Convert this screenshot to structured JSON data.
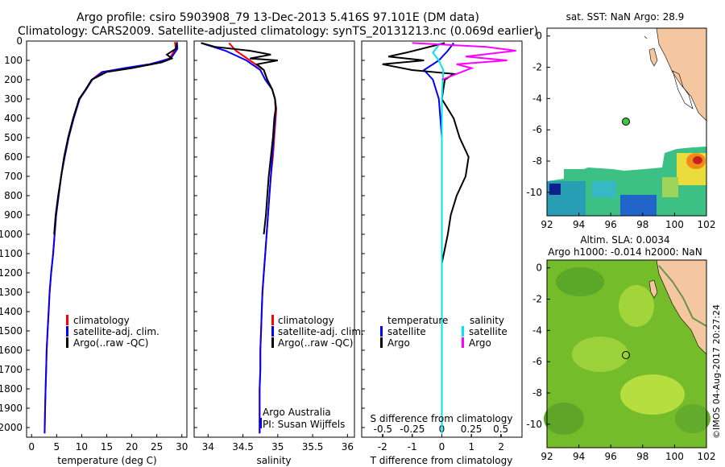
{
  "header": {
    "title_line1": "Argo profile: csiro 5903908_79 13-Dec-2013 5.416S 97.101E (DM data)",
    "title_line2": "Climatology: CARS2009. Satellite-adjusted climatology: synTS_20131213.nc (0.069d earlier)"
  },
  "colors": {
    "climatology": "#ff0000",
    "satellite": "#0000ff",
    "argo": "#000000",
    "salinity_satellite": "#00e5ee",
    "salinity_argo": "#ff00ff"
  },
  "credits": {
    "institution": "Argo Australia",
    "pi": "PI: Susan Wijffels",
    "stamp": "©IMOS 04-Aug-2017 20:27:24"
  },
  "legend_profiles": {
    "climatology": "climatology",
    "satellite": "satellite-adj. clim.",
    "argo": "Argo(..raw -QC)"
  },
  "legend_diff": {
    "temperature_header": "temperature",
    "salinity_header": "salinity",
    "satellite": "satellite",
    "argo": "Argo"
  },
  "chart_data": [
    {
      "type": "line",
      "xlabel": "temperature (deg C)",
      "ylabel": "",
      "xlim": [
        -1,
        31
      ],
      "ylim": [
        2050,
        0
      ],
      "xticks": [
        0,
        5,
        10,
        15,
        20,
        25,
        30
      ],
      "yticks": [
        0,
        100,
        200,
        300,
        400,
        500,
        600,
        700,
        800,
        900,
        1000,
        1100,
        1200,
        1300,
        1400,
        1500,
        1600,
        1700,
        1800,
        1900,
        2000
      ],
      "series": [
        {
          "name": "climatology",
          "x": [
            28.6,
            28.8,
            27.5,
            24.0,
            19.0,
            14.0,
            12.0,
            10.8,
            9.5,
            8.3,
            7.3,
            6.5,
            5.9,
            5.4,
            4.9,
            4.6,
            4.3,
            3.9,
            3.6,
            3.4,
            3.2,
            3.0,
            2.9,
            2.8,
            2.7,
            2.6
          ],
          "y": [
            5,
            40,
            90,
            120,
            140,
            160,
            200,
            250,
            300,
            400,
            500,
            600,
            700,
            800,
            900,
            1000,
            1100,
            1200,
            1300,
            1400,
            1500,
            1600,
            1700,
            1800,
            1900,
            2030
          ]
        },
        {
          "name": "satellite-adj. clim.",
          "x": [
            29.0,
            29.1,
            27.8,
            23.5,
            18.5,
            14.2,
            12.1,
            10.9,
            9.6,
            8.4,
            7.4,
            6.6,
            5.9,
            5.4,
            4.9,
            4.6,
            4.3,
            3.9,
            3.6,
            3.4,
            3.2,
            3.0,
            2.9,
            2.8,
            2.7,
            2.6
          ],
          "y": [
            5,
            40,
            90,
            120,
            140,
            160,
            200,
            250,
            300,
            400,
            500,
            600,
            700,
            800,
            900,
            1000,
            1100,
            1200,
            1300,
            1400,
            1500,
            1600,
            1700,
            1800,
            1900,
            2030
          ]
        },
        {
          "name": "Argo(..raw -QC)",
          "x": [
            29.0,
            28.8,
            27.0,
            28.0,
            26.0,
            20.0,
            15.0,
            12.0,
            10.8,
            9.5,
            8.3,
            7.3,
            6.5,
            5.9,
            5.3,
            4.8,
            4.5
          ],
          "y": [
            10,
            40,
            70,
            90,
            110,
            140,
            160,
            200,
            250,
            300,
            400,
            500,
            600,
            700,
            800,
            900,
            1000
          ]
        }
      ]
    },
    {
      "type": "line",
      "xlabel": "salinity",
      "ylabel": "",
      "xlim": [
        33.8,
        36.1
      ],
      "ylim": [
        2050,
        0
      ],
      "xticks": [
        34,
        34.5,
        35,
        35.5,
        36
      ],
      "series": [
        {
          "name": "climatology",
          "x": [
            34.3,
            34.4,
            34.6,
            34.8,
            34.85,
            34.92,
            34.96,
            34.98,
            34.97,
            34.95,
            34.93,
            34.9,
            34.88,
            34.86,
            34.84,
            34.82,
            34.8,
            34.78,
            34.77,
            34.76,
            34.75,
            34.75,
            34.74,
            34.74,
            34.74
          ],
          "y": [
            10,
            50,
            100,
            150,
            200,
            250,
            300,
            350,
            400,
            500,
            600,
            700,
            800,
            900,
            1000,
            1100,
            1200,
            1300,
            1400,
            1500,
            1600,
            1700,
            1800,
            1900,
            2030
          ]
        },
        {
          "name": "satellite-adj. clim.",
          "x": [
            33.9,
            34.25,
            34.55,
            34.75,
            34.82,
            34.92,
            34.96,
            34.97,
            34.96,
            34.94,
            34.92,
            34.9,
            34.88,
            34.86,
            34.84,
            34.82,
            34.8,
            34.78,
            34.77,
            34.76,
            34.75,
            34.75,
            34.74,
            34.74,
            34.74
          ],
          "y": [
            10,
            50,
            100,
            150,
            200,
            250,
            300,
            350,
            400,
            500,
            600,
            700,
            800,
            900,
            1000,
            1100,
            1200,
            1300,
            1400,
            1500,
            1600,
            1700,
            1800,
            1900,
            2030
          ]
        },
        {
          "name": "Argo(..raw -QC)",
          "x": [
            33.9,
            34.1,
            34.6,
            34.9,
            34.6,
            35.0,
            34.7,
            34.8,
            34.85,
            34.92,
            34.96,
            34.97,
            34.95,
            34.93,
            34.9,
            34.87,
            34.85,
            34.83,
            34.8
          ],
          "y": [
            10,
            30,
            50,
            70,
            90,
            100,
            120,
            150,
            200,
            250,
            300,
            350,
            400,
            500,
            600,
            700,
            800,
            900,
            1000
          ]
        }
      ]
    },
    {
      "type": "line",
      "xlabel": "T difference from climatology",
      "x2label": "S difference from climatology",
      "xlim": [
        -2.7,
        2.7
      ],
      "ylim": [
        2050,
        0
      ],
      "xticks": [
        -2,
        -1,
        0,
        1,
        2
      ],
      "x2ticks": [
        -0.5,
        -0.25,
        0,
        0.25,
        0.5
      ],
      "series": [
        {
          "name": "temperature satellite",
          "x": [
            0.4,
            0.2,
            -0.1,
            -0.6,
            -0.3,
            -0.2,
            -0.1,
            0.0,
            0.0,
            0.0
          ],
          "y": [
            10,
            50,
            100,
            150,
            200,
            250,
            300,
            500,
            1000,
            2030
          ]
        },
        {
          "name": "temperature Argo",
          "x": [
            0.1,
            -1.2,
            -1.8,
            -0.6,
            -2.0,
            -1.0,
            0.4,
            0.1,
            0.0,
            0.4,
            0.6,
            0.9,
            0.8,
            0.5,
            0.3,
            0.2,
            0.0
          ],
          "y": [
            10,
            60,
            80,
            100,
            120,
            150,
            170,
            200,
            300,
            400,
            500,
            600,
            700,
            800,
            900,
            1000,
            1150
          ]
        },
        {
          "name": "salinity satellite",
          "x": [
            -0.05,
            -0.3,
            -0.1,
            0.05,
            0.0,
            0.0,
            0.0
          ],
          "y": [
            10,
            60,
            100,
            150,
            300,
            1000,
            2030
          ]
        },
        {
          "name": "salinity Argo",
          "x": [
            -1.0,
            1.5,
            2.5,
            0.8,
            2.2,
            0.5,
            1.0,
            0.0
          ],
          "y": [
            10,
            30,
            50,
            80,
            100,
            120,
            140,
            200
          ]
        }
      ]
    },
    {
      "type": "heatmap",
      "title": "sat. SST: NaN Argo: 28.9",
      "xlim": [
        92,
        102
      ],
      "ylim": [
        -11.5,
        0.5
      ],
      "xticks": [
        92,
        94,
        96,
        98,
        100,
        102
      ],
      "yticks": [
        0,
        -2,
        -4,
        -6,
        -8,
        -10
      ],
      "marker": {
        "lon": 97.1,
        "lat": -5.42
      }
    },
    {
      "type": "heatmap",
      "title": "Altim. SLA: 0.0034",
      "subtitle": "Argo h1000: -0.014 h2000: NaN",
      "xlim": [
        92,
        102
      ],
      "ylim": [
        -11.5,
        0.5
      ],
      "xticks": [
        92,
        94,
        96,
        98,
        100,
        102
      ],
      "yticks": [
        0,
        -2,
        -4,
        -6,
        -8,
        -10
      ],
      "marker": {
        "lon": 97.1,
        "lat": -5.42
      }
    }
  ]
}
